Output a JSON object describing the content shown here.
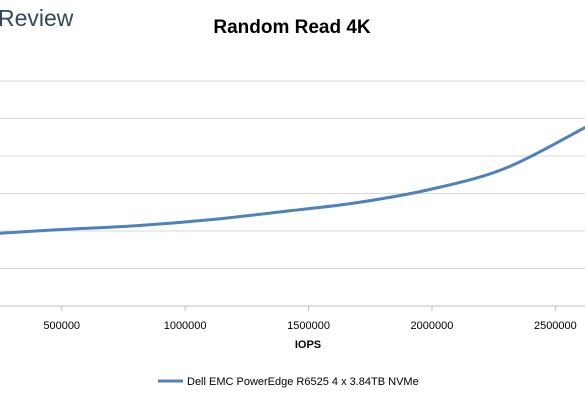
{
  "brand_fragment": "Review",
  "chart_data": {
    "type": "line",
    "title": "Random Read 4K",
    "xlabel": "IOPS",
    "ylabel": "",
    "xlim": [
      250000,
      2620000
    ],
    "ylim": [
      0,
      4.0
    ],
    "x_ticks": [
      500000,
      1000000,
      1500000,
      2000000,
      2500000
    ],
    "x_tick_labels": [
      "500000",
      "1000000",
      "1500000",
      "2000000",
      "2500000"
    ],
    "y_gridlines": [
      0.5,
      1.0,
      1.5,
      2.0,
      2.5,
      3.0
    ],
    "grid": true,
    "legend_position": "bottom",
    "series": [
      {
        "name": "Dell EMC PowerEdge R6525 4 x 3.84TB NVMe",
        "color": "#4f81bd",
        "x": [
          250000,
          500000,
          800000,
          1100000,
          1400000,
          1700000,
          2000000,
          2300000,
          2620000
        ],
        "y": [
          0.97,
          1.02,
          1.07,
          1.15,
          1.26,
          1.38,
          1.56,
          1.84,
          2.38
        ]
      }
    ]
  }
}
